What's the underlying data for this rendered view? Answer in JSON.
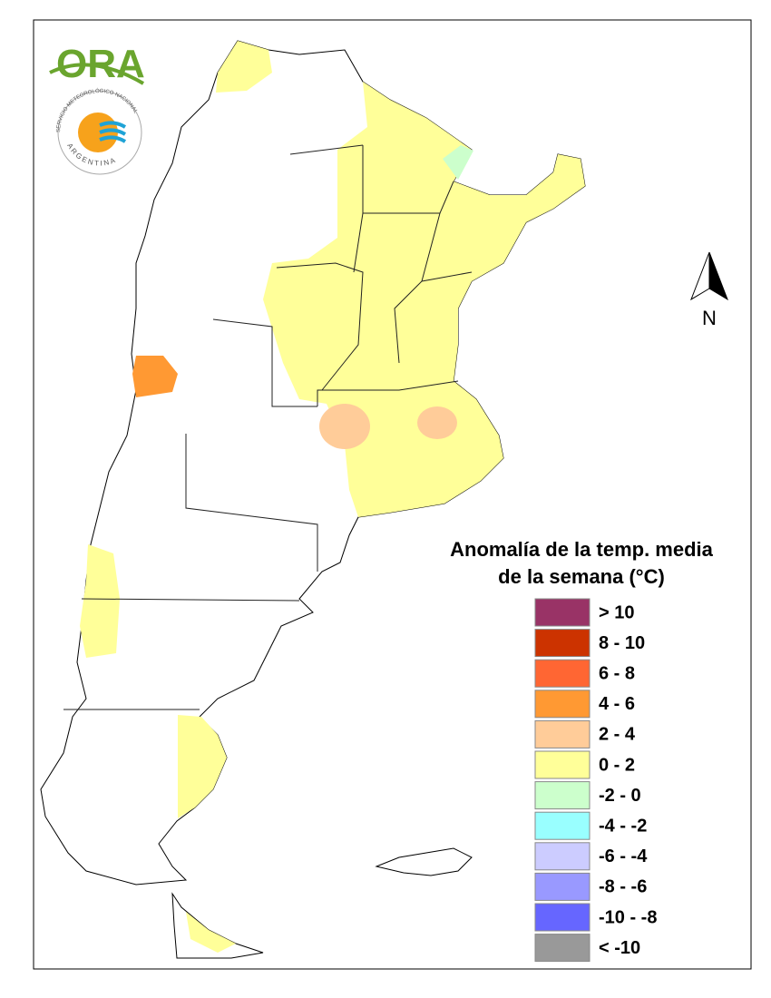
{
  "logos": {
    "ora": "ORA",
    "smn_name": "SERVICIO METEOROLÓGICO NACIONAL",
    "smn_country": "ARGENTINA"
  },
  "north_label": "N",
  "legend": {
    "title_line1": "Anomalía de la temp. media",
    "title_line2": "de la semana (°C)",
    "items": [
      {
        "label": "> 10",
        "color": "#993366"
      },
      {
        "label": "8 - 10",
        "color": "#cc3300"
      },
      {
        "label": "6 - 8",
        "color": "#ff6633"
      },
      {
        "label": "4 - 6",
        "color": "#ff9933"
      },
      {
        "label": "2 - 4",
        "color": "#ffcc99"
      },
      {
        "label": "0 - 2",
        "color": "#ffff99"
      },
      {
        "label": "-2 - 0",
        "color": "#ccffcc"
      },
      {
        "label": "-4 - -2",
        "color": "#99ffff"
      },
      {
        "label": "-6 - -4",
        "color": "#ccccff"
      },
      {
        "label": "-8 - -6",
        "color": "#9999ff"
      },
      {
        "label": "-10 - -8",
        "color": "#6666ff"
      },
      {
        "label": "< -10",
        "color": "#999999"
      }
    ]
  }
}
